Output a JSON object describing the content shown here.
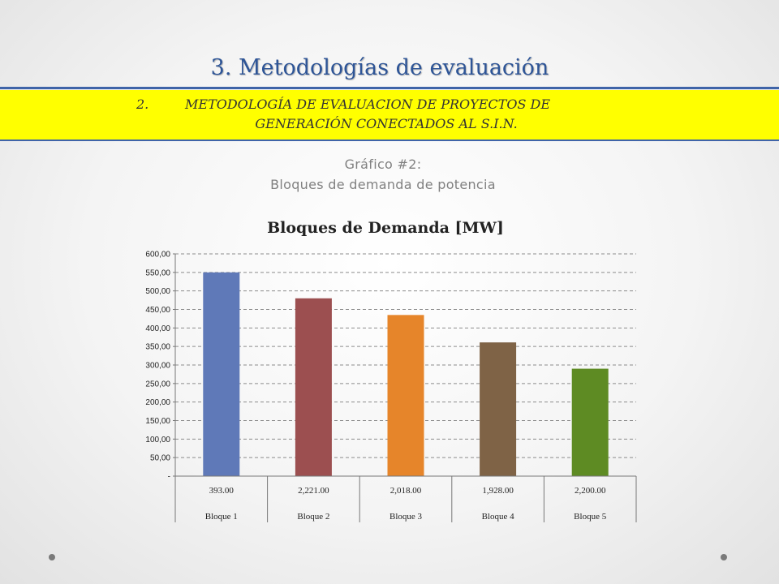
{
  "slide": {
    "title": "3. Metodologías de evaluación",
    "banner_number": "2.",
    "banner_line1": "METODOLOGÍA DE EVALUACION DE PROYECTOS DE",
    "banner_line2": "GENERACIÓN CONECTADOS AL S.I.N.",
    "subtitle_line1": "Gráfico #2:",
    "subtitle_line2": "Bloques de demanda de potencia"
  },
  "chart_data": {
    "type": "bar",
    "title": "Bloques de Demanda [MW]",
    "categories": [
      "Bloque 1",
      "Bloque 2",
      "Bloque 3",
      "Bloque 4",
      "Bloque 5"
    ],
    "table_values": [
      "393.00",
      "2,221.00",
      "2,018.00",
      "1,928.00",
      "2,200.00"
    ],
    "values": [
      550,
      480,
      435,
      361,
      290
    ],
    "bar_colors": [
      "#5f79b8",
      "#9c4f50",
      "#e6852a",
      "#7f6346",
      "#5e8b23"
    ],
    "ylim": [
      0,
      600
    ],
    "yticks": [
      0,
      50,
      100,
      150,
      200,
      250,
      300,
      350,
      400,
      450,
      500,
      550,
      600
    ],
    "ytick_labels": [
      "-",
      "50,00",
      "100,00",
      "150,00",
      "200,00",
      "250,00",
      "300,00",
      "350,00",
      "400,00",
      "450,00",
      "500,00",
      "550,00",
      "600,00"
    ],
    "grid": true,
    "grid_style": "dashed",
    "legend": "none"
  }
}
